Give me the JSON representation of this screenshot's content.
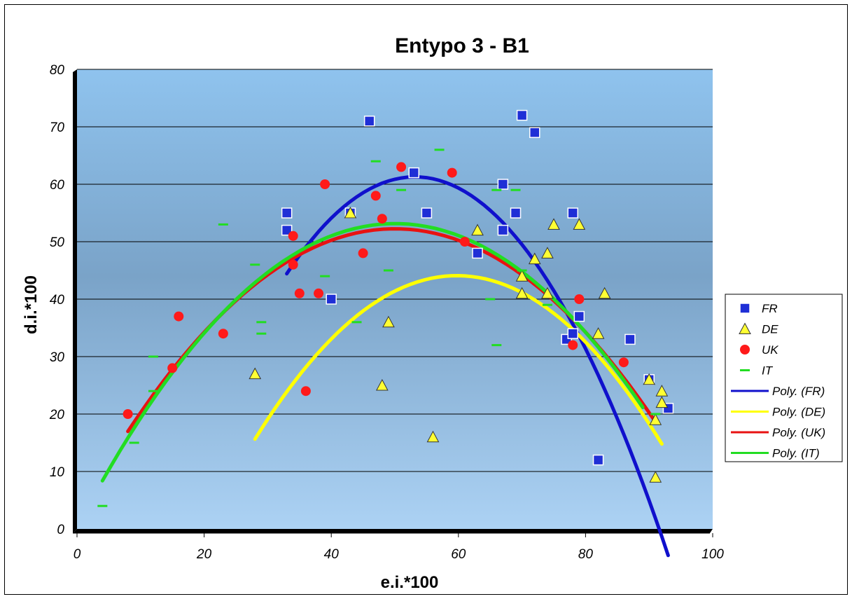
{
  "chart_data": {
    "type": "scatter",
    "title": "Entypo 3 - B1",
    "xlabel": "e.i.*100",
    "ylabel": "d.i.*100",
    "xlim": [
      0,
      100
    ],
    "ylim": [
      0,
      80
    ],
    "xticks": [
      0,
      20,
      40,
      60,
      80,
      100
    ],
    "yticks": [
      0,
      10,
      20,
      30,
      40,
      50,
      60,
      70,
      80
    ],
    "grid": true,
    "legend_position": "right",
    "colors": {
      "plot_bg_top": "#8fbfe8",
      "plot_bg_mid": "#7aa2c6",
      "plot_bg_bottom": "#a9cdee"
    },
    "series": [
      {
        "name": "FR",
        "marker": "square",
        "color": "#1f2fd6",
        "x": [
          33,
          33,
          43,
          46,
          53,
          55,
          63,
          67,
          67,
          69,
          70,
          72,
          77,
          78,
          78,
          79,
          82,
          87,
          90,
          93,
          40
        ],
        "y": [
          55,
          52,
          55,
          71,
          62,
          55,
          48,
          60,
          52,
          55,
          72,
          69,
          33,
          34,
          55,
          37,
          12,
          33,
          26,
          21,
          40
        ]
      },
      {
        "name": "DE",
        "marker": "triangle",
        "color": "#ffff33",
        "x": [
          28,
          43,
          48,
          49,
          56,
          63,
          70,
          70,
          72,
          74,
          74,
          75,
          79,
          82,
          83,
          90,
          91,
          91,
          92,
          92
        ],
        "y": [
          27,
          55,
          25,
          36,
          16,
          52,
          44,
          41,
          47,
          48,
          41,
          53,
          53,
          34,
          41,
          26,
          19,
          9,
          24,
          22
        ]
      },
      {
        "name": "UK",
        "marker": "circle",
        "color": "#ff1a1a",
        "x": [
          8,
          15,
          16,
          23,
          34,
          34,
          35,
          36,
          38,
          39,
          45,
          47,
          48,
          51,
          59,
          61,
          78,
          79,
          86
        ],
        "y": [
          20,
          28,
          37,
          34,
          51,
          46,
          41,
          24,
          41,
          60,
          48,
          58,
          54,
          63,
          62,
          50,
          32,
          40,
          29
        ]
      },
      {
        "name": "IT",
        "marker": "dash",
        "color": "#22dd22",
        "x": [
          4,
          9,
          12,
          12,
          23,
          28,
          29,
          29,
          39,
          44,
          47,
          49,
          51,
          57,
          65,
          66,
          66,
          69,
          70,
          74,
          91
        ],
        "y": [
          4,
          15,
          24,
          30,
          53,
          46,
          34,
          36,
          44,
          36,
          64,
          45,
          59,
          66,
          40,
          32,
          59,
          59,
          45,
          39,
          20
        ]
      },
      {
        "name": "Poly. (FR)",
        "type": "poly2",
        "color": "#1010cc",
        "coef": [
          -55.96,
          4.4116,
          -0.0415
        ],
        "x_range": [
          33,
          93
        ]
      },
      {
        "name": "Poly. (DE)",
        "type": "poly2",
        "color": "#ffff00",
        "coef": [
          -56.64,
          3.3708,
          -0.0282
        ],
        "x_range": [
          28,
          92
        ]
      },
      {
        "name": "Poly. (UK)",
        "type": "poly2",
        "color": "#e81212",
        "coef": [
          2.25,
          2.0,
          -0.02
        ],
        "x_range": [
          8,
          91
        ]
      },
      {
        "name": "Poly. (IT)",
        "type": "poly2",
        "color": "#22dd22",
        "coef": [
          0.28,
          2.1125,
          -0.0211
        ],
        "x_range": [
          4,
          89
        ]
      }
    ]
  }
}
